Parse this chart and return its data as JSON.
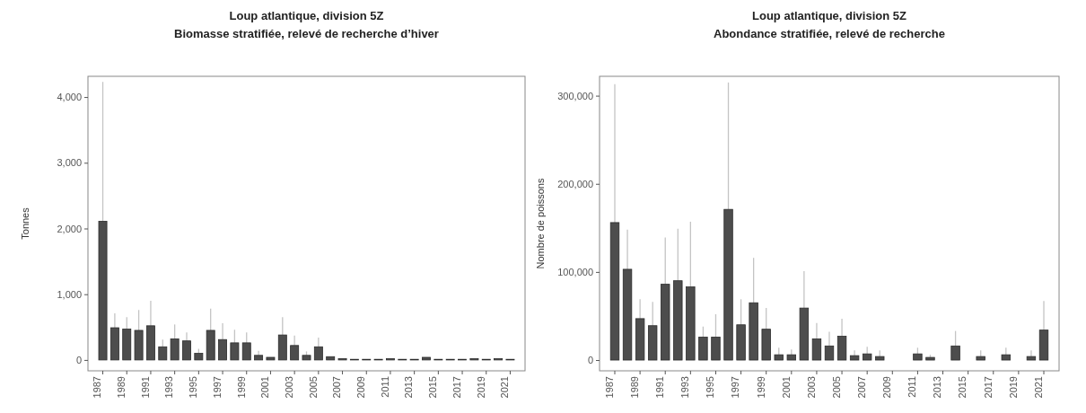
{
  "chart_data": [
    {
      "type": "bar",
      "title": "Loup atlantique, division 5Z",
      "subtitle": "Biomasse stratifiée, relevé de recherche d’hiver",
      "ylabel": "Tonnes",
      "categories": [
        "1987",
        null,
        "1989",
        null,
        "1991",
        null,
        "1993",
        null,
        "1995",
        null,
        "1997",
        null,
        "1999",
        null,
        "2001",
        null,
        "2003",
        null,
        "2005",
        null,
        "2007",
        null,
        "2009",
        null,
        "2011",
        null,
        "2013",
        null,
        "2015",
        null,
        "2017",
        null,
        "2019",
        null,
        "2021"
      ],
      "values": [
        2110,
        490,
        470,
        450,
        520,
        200,
        320,
        290,
        100,
        450,
        310,
        260,
        260,
        70,
        40,
        380,
        220,
        70,
        200,
        50,
        20,
        10,
        10,
        10,
        20,
        10,
        10,
        40,
        10,
        10,
        10,
        20,
        10,
        20,
        10
      ],
      "errors": [
        [
          2110,
          4230
        ],
        [
          490,
          710
        ],
        [
          470,
          650
        ],
        [
          450,
          760
        ],
        [
          520,
          900
        ],
        [
          200,
          310
        ],
        [
          320,
          540
        ],
        [
          290,
          420
        ],
        [
          100,
          170
        ],
        [
          450,
          780
        ],
        [
          310,
          560
        ],
        [
          260,
          460
        ],
        [
          260,
          420
        ],
        [
          70,
          140
        ],
        null,
        [
          380,
          650
        ],
        [
          220,
          370
        ],
        [
          70,
          130
        ],
        [
          200,
          340
        ],
        null,
        null,
        null,
        null,
        null,
        null,
        null,
        null,
        null,
        null,
        null,
        null,
        null,
        null,
        null,
        null
      ],
      "color": "#4d4d4d",
      "ylim": [
        -165,
        4315
      ],
      "yticks": [
        {
          "value": 0,
          "label": "0"
        },
        {
          "value": 1000,
          "label": "1,000"
        },
        {
          "value": 2000,
          "label": "2,000"
        },
        {
          "value": 3000,
          "label": "3,000"
        },
        {
          "value": 4000,
          "label": "4,000"
        }
      ],
      "grid": false
    },
    {
      "type": "bar",
      "title": "Loup atlantique, division 5Z",
      "subtitle": "Abondance stratifiée, relevé de recherche",
      "ylabel": "Nombre de poissons",
      "categories": [
        "1987",
        null,
        "1989",
        null,
        "1991",
        null,
        "1993",
        null,
        "1995",
        null,
        "1997",
        null,
        "1999",
        null,
        "2001",
        null,
        "2003",
        null,
        "2005",
        null,
        "2007",
        null,
        "2009",
        null,
        "2011",
        null,
        "2013",
        null,
        "2015",
        null,
        "2017",
        null,
        "2019",
        null,
        "2021"
      ],
      "values": [
        156000,
        103000,
        47000,
        39000,
        86000,
        90000,
        83000,
        26000,
        26000,
        171000,
        40000,
        65000,
        35000,
        6000,
        6000,
        59000,
        24000,
        16000,
        27000,
        5000,
        7000,
        4000,
        0,
        0,
        7000,
        3000,
        0,
        16000,
        0,
        4000,
        0,
        6000,
        0,
        4000,
        34000
      ],
      "errors": [
        [
          156000,
          313000
        ],
        [
          103000,
          148000
        ],
        [
          47000,
          69000
        ],
        [
          39000,
          66000
        ],
        [
          86000,
          139000
        ],
        [
          90000,
          149000
        ],
        [
          83000,
          157000
        ],
        [
          26000,
          38000
        ],
        [
          26000,
          52000
        ],
        [
          171000,
          315000
        ],
        [
          40000,
          69000
        ],
        [
          65000,
          116000
        ],
        [
          35000,
          59000
        ],
        [
          6000,
          14000
        ],
        [
          6000,
          12000
        ],
        [
          59000,
          101000
        ],
        [
          24000,
          42000
        ],
        [
          16000,
          32000
        ],
        [
          27000,
          47000
        ],
        [
          5000,
          11000
        ],
        [
          7000,
          15000
        ],
        [
          4000,
          11000
        ],
        null,
        null,
        [
          7000,
          14000
        ],
        [
          3000,
          6000
        ],
        null,
        [
          16000,
          33000
        ],
        null,
        [
          4000,
          11000
        ],
        null,
        [
          6000,
          14000
        ],
        null,
        [
          4000,
          11000
        ],
        [
          34000,
          67000
        ]
      ],
      "color": "#4d4d4d",
      "ylim": [
        -12200,
        322000
      ],
      "yticks": [
        {
          "value": 0,
          "label": "0"
        },
        {
          "value": 100000,
          "label": "100,000"
        },
        {
          "value": 200000,
          "label": "200,000"
        },
        {
          "value": 300000,
          "label": "300,000"
        }
      ],
      "grid": false
    }
  ]
}
